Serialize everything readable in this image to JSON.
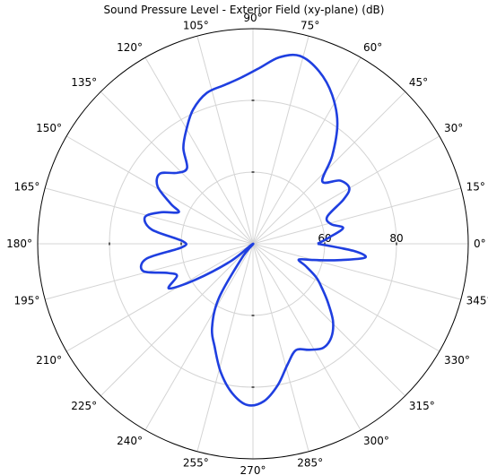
{
  "chart_data": {
    "type": "polar-line",
    "title": "Sound Pressure Level - Exterior Field (xy-plane) (dB)",
    "r_range": [
      40,
      100
    ],
    "radial_ticks": [
      60,
      80
    ],
    "radial_tick_labels": [
      "60",
      "80"
    ],
    "grid": true,
    "angle_labels": [
      "0°",
      "15°",
      "30°",
      "45°",
      "60°",
      "75°",
      "90°",
      "105°",
      "120°",
      "135°",
      "150°",
      "165°",
      "180°",
      "195°",
      "210°",
      "225°",
      "240°",
      "255°",
      "270°",
      "285°",
      "300°",
      "315°",
      "330°",
      "345°"
    ],
    "series": [
      {
        "color": "#1f3fe0",
        "points_deg_db": [
          [
            0,
            58.0
          ],
          [
            5,
            61.5
          ],
          [
            10,
            65.5
          ],
          [
            14,
            62.5
          ],
          [
            20,
            62.0
          ],
          [
            26,
            68.0
          ],
          [
            30,
            71.0
          ],
          [
            36,
            70.0
          ],
          [
            42,
            66.0
          ],
          [
            48,
            73.0
          ],
          [
            55,
            81.0
          ],
          [
            62,
            87.0
          ],
          [
            69,
            91.5
          ],
          [
            76,
            94.0
          ],
          [
            82,
            92.5
          ],
          [
            88,
            89.0
          ],
          [
            94,
            86.5
          ],
          [
            100,
            85.0
          ],
          [
            107,
            84.0
          ],
          [
            114,
            81.0
          ],
          [
            120,
            77.0
          ],
          [
            126,
            73.0
          ],
          [
            131,
            68.0
          ],
          [
            137,
            69.0
          ],
          [
            143,
            72.5
          ],
          [
            149,
            71.0
          ],
          [
            154,
            65.5
          ],
          [
            157,
            62.5
          ],
          [
            161,
            67.0
          ],
          [
            166,
            71.0
          ],
          [
            172,
            68.5
          ],
          [
            178,
            59.5
          ],
          [
            183,
            60.0
          ],
          [
            188,
            70.0
          ],
          [
            194,
            71.5
          ],
          [
            199,
            65.0
          ],
          [
            203,
            63.0
          ],
          [
            208,
            66.5
          ],
          [
            212,
            59.0
          ],
          [
            218,
            48.0
          ],
          [
            225,
            40.0
          ],
          [
            232,
            45.0
          ],
          [
            238,
            58.0
          ],
          [
            244,
            66.0
          ],
          [
            250,
            71.0
          ],
          [
            256,
            77.0
          ],
          [
            262,
            82.0
          ],
          [
            268,
            85.0
          ],
          [
            274,
            84.0
          ],
          [
            280,
            80.0
          ],
          [
            286,
            75.0
          ],
          [
            292,
            72.0
          ],
          [
            298,
            73.5
          ],
          [
            304,
            75.0
          ],
          [
            310,
            74.0
          ],
          [
            316,
            71.0
          ],
          [
            322,
            66.5
          ],
          [
            327,
            63.0
          ],
          [
            332,
            60.0
          ],
          [
            337,
            56.0
          ],
          [
            341,
            53.5
          ],
          [
            345,
            57.5
          ],
          [
            349,
            64.0
          ],
          [
            353,
            71.5
          ],
          [
            356,
            68.0
          ],
          [
            360,
            58.0
          ]
        ]
      }
    ]
  }
}
